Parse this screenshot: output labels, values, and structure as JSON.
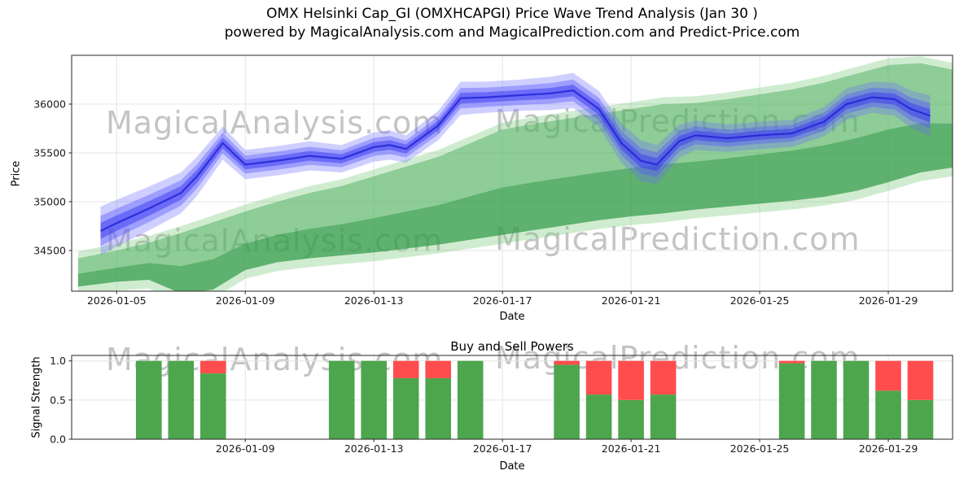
{
  "title": {
    "line1": "OMX Helsinki Cap_GI (OMXHCAPGI) Price Wave Trend Analysis (Jan 30 )",
    "line2": "powered by MagicalAnalysis.com and MagicalPrediction.com and Predict-Price.com"
  },
  "watermarks": {
    "left": "MagicalAnalysis.com",
    "right": "MagicalPrediction.com"
  },
  "chart_data": [
    {
      "type": "area",
      "name": "price_wave_trend",
      "xlabel": "Date",
      "ylabel": "Price",
      "ylim": [
        34083,
        36500
      ],
      "xlim_days": [
        3.6,
        31.0
      ],
      "grid": true,
      "yticks": [
        "34500",
        "35000",
        "35500",
        "36000"
      ],
      "xticks": [
        "2026-01-05",
        "2026-01-09",
        "2026-01-13",
        "2026-01-17",
        "2026-01-21",
        "2026-01-25",
        "2026-01-29"
      ],
      "series": [
        {
          "name": "price_wave_blue",
          "color": "#2323d7",
          "x_days": [
            4.5,
            5,
            6,
            7,
            7.5,
            8.3,
            9,
            10,
            11,
            12,
            13,
            13.5,
            14,
            15,
            15.7,
            16.5,
            17.5,
            18.5,
            19.2,
            20,
            20.7,
            21.3,
            21.8,
            22.5,
            23,
            24,
            25,
            26,
            27,
            27.7,
            28.5,
            29.2,
            29.7,
            30.3
          ],
          "center": [
            34700,
            34780,
            34930,
            35090,
            35260,
            35600,
            35380,
            35420,
            35470,
            35440,
            35560,
            35580,
            35540,
            35780,
            36060,
            36070,
            36090,
            36110,
            36140,
            35950,
            35600,
            35420,
            35380,
            35620,
            35680,
            35650,
            35680,
            35700,
            35820,
            36000,
            36070,
            36050,
            35950,
            35880
          ],
          "half_width": [
            250,
            240,
            225,
            210,
            200,
            170,
            150,
            150,
            150,
            140,
            150,
            150,
            140,
            150,
            170,
            160,
            160,
            170,
            180,
            185,
            200,
            210,
            200,
            170,
            150,
            140,
            140,
            140,
            150,
            160,
            160,
            170,
            190,
            210
          ]
        },
        {
          "name": "trend_channel_green",
          "color": "#2e9e4f",
          "x_days": [
            3.8,
            5,
            6,
            7,
            8,
            9,
            10,
            11,
            12,
            13,
            14,
            15,
            16,
            17,
            18,
            19,
            20,
            21,
            22,
            23,
            24,
            25,
            26,
            27,
            28,
            29,
            30,
            31.2
          ],
          "lower": [
            34130,
            34180,
            34200,
            34060,
            34100,
            34300,
            34380,
            34420,
            34450,
            34480,
            34520,
            34560,
            34610,
            34660,
            34710,
            34760,
            34810,
            34850,
            34880,
            34920,
            34950,
            34980,
            35010,
            35050,
            35110,
            35200,
            35300,
            35360
          ],
          "upper": [
            34420,
            34500,
            34580,
            34680,
            34790,
            34900,
            35000,
            35090,
            35160,
            35260,
            35360,
            35460,
            35600,
            35740,
            35800,
            35850,
            35900,
            35950,
            36000,
            36010,
            36050,
            36100,
            36150,
            36220,
            36310,
            36400,
            36420,
            36340
          ]
        }
      ]
    },
    {
      "type": "bar",
      "name": "buy_sell_powers",
      "title": "Buy and Sell Powers",
      "xlabel": "Date",
      "ylabel": "Signal Strength",
      "ylim": [
        0,
        1.07
      ],
      "grid": true,
      "yticks": [
        "0.0",
        "0.5",
        "1.0"
      ],
      "xticks": [
        "2026-01-09",
        "2026-01-13",
        "2026-01-17",
        "2026-01-21",
        "2026-01-25",
        "2026-01-29"
      ],
      "buy_color": "#4da64d",
      "sell_color": "#ff4d4d",
      "bars": [
        {
          "date": "2026-01-06",
          "buy": 1.0,
          "sell": 0.0
        },
        {
          "date": "2026-01-07",
          "buy": 1.0,
          "sell": 0.0
        },
        {
          "date": "2026-01-08",
          "buy": 0.84,
          "sell": 0.16
        },
        {
          "date": "2026-01-12",
          "buy": 1.0,
          "sell": 0.0
        },
        {
          "date": "2026-01-13",
          "buy": 1.0,
          "sell": 0.0
        },
        {
          "date": "2026-01-14",
          "buy": 0.78,
          "sell": 0.22
        },
        {
          "date": "2026-01-15",
          "buy": 0.78,
          "sell": 0.22
        },
        {
          "date": "2026-01-16",
          "buy": 1.0,
          "sell": 0.0
        },
        {
          "date": "2026-01-19",
          "buy": 0.95,
          "sell": 0.05
        },
        {
          "date": "2026-01-20",
          "buy": 0.57,
          "sell": 0.43
        },
        {
          "date": "2026-01-21",
          "buy": 0.5,
          "sell": 0.5
        },
        {
          "date": "2026-01-22",
          "buy": 0.57,
          "sell": 0.43
        },
        {
          "date": "2026-01-26",
          "buy": 0.97,
          "sell": 0.03
        },
        {
          "date": "2026-01-27",
          "buy": 1.0,
          "sell": 0.0
        },
        {
          "date": "2026-01-28",
          "buy": 1.0,
          "sell": 0.0
        },
        {
          "date": "2026-01-29",
          "buy": 0.62,
          "sell": 0.38
        },
        {
          "date": "2026-01-30",
          "buy": 0.5,
          "sell": 0.5
        }
      ]
    }
  ]
}
